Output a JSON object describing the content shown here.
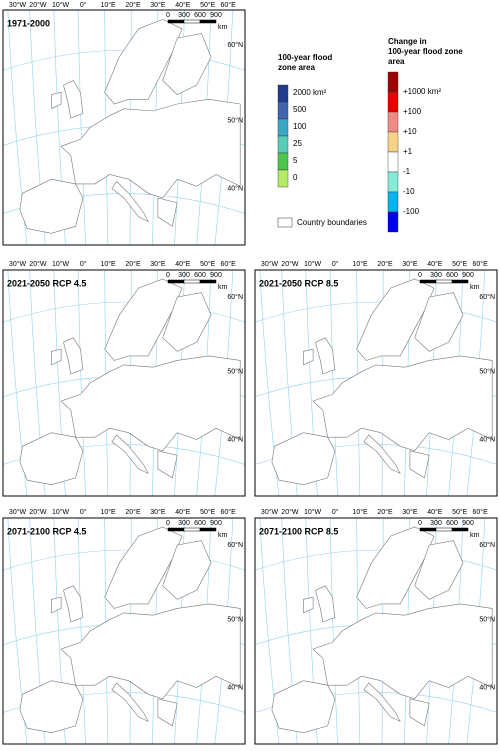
{
  "panels": [
    {
      "title": "1971-2000"
    },
    {
      "title": "2021-2050 RCP 4.5"
    },
    {
      "title": "2021-2050 RCP 8.5"
    },
    {
      "title": "2071-2100 RCP 4.5"
    },
    {
      "title": "2071-2100 RCP 8.5"
    }
  ],
  "graticule": {
    "longitudes": [
      "30°W",
      "20°W",
      "10°W",
      "0°",
      "10°E",
      "20°E",
      "30°E",
      "40°E",
      "50°E",
      "60°E"
    ],
    "latitudes": [
      "60°N",
      "50°N",
      "40°N"
    ]
  },
  "scale_bar": {
    "labels": [
      "0",
      "300",
      "600",
      "900"
    ],
    "unit": "km"
  },
  "legend_baseline": {
    "title": "100-year flood zone area",
    "labels": [
      "2000 km²",
      "500",
      "100",
      "25",
      "5",
      "0"
    ],
    "colors": [
      "#1f3a8f",
      "#3f64b0",
      "#3aa6c8",
      "#56cdb8",
      "#4cc64c",
      "#b4ec66"
    ]
  },
  "legend_change": {
    "title": "Change in 100-year flood zone area",
    "labels": [
      "+1000 km²",
      "+100",
      "+10",
      "+1",
      "-1",
      "-10",
      "-100"
    ],
    "colors": [
      "#a00000",
      "#e60000",
      "#f08a84",
      "#f7d38a",
      "#ffffff",
      "#86ecd8",
      "#00b4f0",
      "#0000e6"
    ]
  },
  "country_boundaries": "Country boundaries"
}
